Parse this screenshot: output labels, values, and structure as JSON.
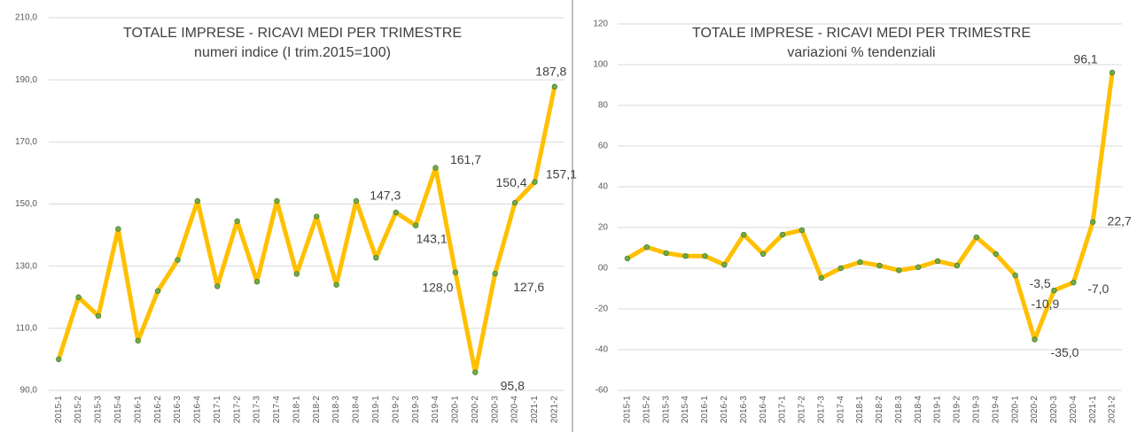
{
  "chart_data": [
    {
      "type": "line",
      "title": "TOTALE IMPRESE - RICAVI MEDI PER TRIMESTRE",
      "subtitle": "numeri indice (I trim.2015=100)",
      "categories": [
        "2015-1",
        "2015-2",
        "2015-3",
        "2015-4",
        "2016-1",
        "2016-2",
        "2016-3",
        "2016-4",
        "2017-1",
        "2017-2",
        "2017-3",
        "2017-4",
        "2018-1",
        "2018-2",
        "2018-3",
        "2018-4",
        "2019-1",
        "2019-2",
        "2019-3",
        "2019-4",
        "2020-1",
        "2020-2",
        "2020-3",
        "2020-4",
        "2021-1",
        "2021-2"
      ],
      "values": [
        100,
        120,
        114,
        142,
        106,
        122,
        132,
        151,
        123.5,
        144.5,
        125,
        151,
        127.5,
        146,
        124,
        151,
        132.7,
        147.3,
        143.1,
        161.7,
        128.0,
        95.8,
        127.6,
        150.4,
        157.1,
        187.8
      ],
      "value_labels": [
        null,
        null,
        null,
        null,
        null,
        null,
        null,
        null,
        null,
        null,
        null,
        null,
        null,
        null,
        null,
        null,
        null,
        "147,3",
        "143,1",
        "161,7",
        "128,0",
        "95,8",
        "127,6",
        "150,4",
        "157,1",
        "187,8"
      ],
      "color": "#ffc000",
      "marker_color": "#70ad47",
      "ylim": [
        90,
        210
      ],
      "yticks": [
        {
          "value": 90,
          "label": "90,0"
        },
        {
          "value": 110,
          "label": "110,0"
        },
        {
          "value": 130,
          "label": "130,0"
        },
        {
          "value": 150,
          "label": "150,0"
        },
        {
          "value": 170,
          "label": "170,0"
        },
        {
          "value": 190,
          "label": "190,0"
        },
        {
          "value": 210,
          "label": "210,0"
        }
      ],
      "grid": true
    },
    {
      "type": "line",
      "title": "TOTALE IMPRESE - RICAVI MEDI PER TRIMESTRE",
      "subtitle": "variazioni % tendenziali",
      "categories": [
        "2015-1",
        "2015-2",
        "2015-3",
        "2015-4",
        "2016-1",
        "2016-2",
        "2016-3",
        "2016-4",
        "2017-1",
        "2017-2",
        "2017-3",
        "2017-4",
        "2018-1",
        "2018-2",
        "2018-3",
        "2018-4",
        "2019-1",
        "2019-2",
        "2019-3",
        "2019-4",
        "2020-1",
        "2020-2",
        "2020-3",
        "2020-4",
        "2021-1",
        "2021-2"
      ],
      "values": [
        4.8,
        10.4,
        7.4,
        6,
        6,
        1.7,
        16.5,
        7,
        16.5,
        18.7,
        -4.8,
        0,
        3,
        1.3,
        -1,
        0.5,
        3.5,
        1.3,
        15.2,
        7,
        -3.5,
        -35.0,
        -10.9,
        -7.0,
        22.7,
        96.1
      ],
      "value_labels": [
        null,
        null,
        null,
        null,
        null,
        null,
        null,
        null,
        null,
        null,
        null,
        null,
        null,
        null,
        null,
        null,
        null,
        null,
        null,
        null,
        "-3,5",
        "-35,0",
        "-10,9",
        "-7,0",
        "22,7",
        "96,1"
      ],
      "color": "#ffc000",
      "marker_color": "#70ad47",
      "ylim": [
        -60,
        120
      ],
      "yticks": [
        -60,
        -40,
        -20,
        {
          "value": 0,
          "label": "00"
        },
        20,
        40,
        60,
        80,
        100,
        120
      ],
      "grid": true
    }
  ]
}
